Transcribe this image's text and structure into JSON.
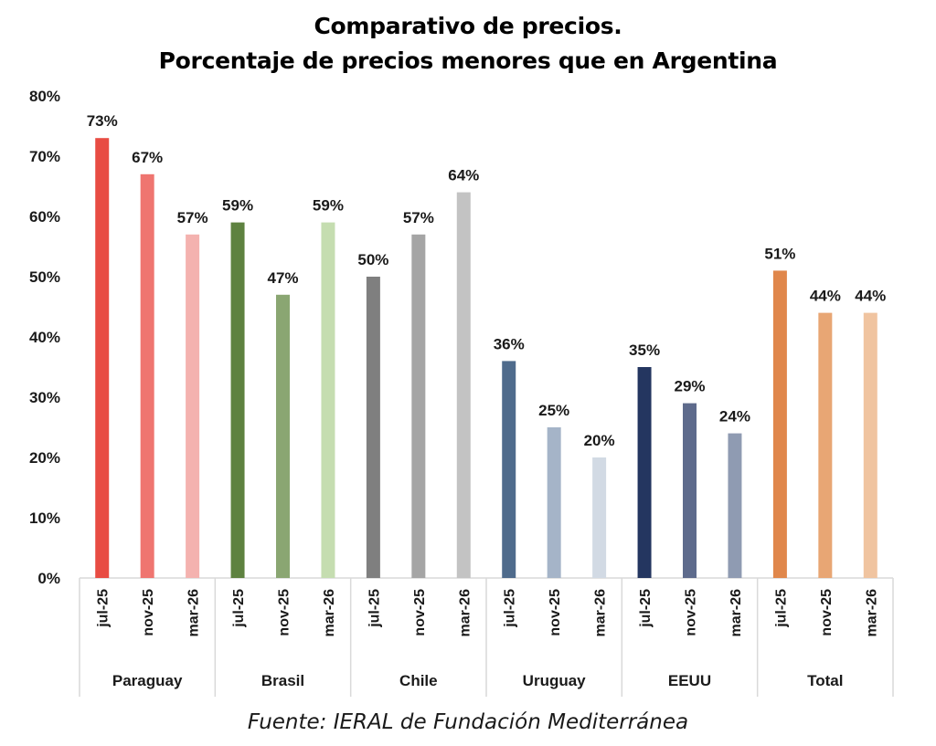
{
  "chart_data": {
    "type": "bar",
    "title": "Comparativo de precios.",
    "subtitle": "Porcentaje de precios menores que en Argentina",
    "xlabel": "",
    "ylabel": "",
    "ylim": [
      0,
      80
    ],
    "yticks": [
      "0%",
      "10%",
      "20%",
      "30%",
      "40%",
      "50%",
      "60%",
      "70%",
      "80%"
    ],
    "ytick_values": [
      0,
      10,
      20,
      30,
      40,
      50,
      60,
      70,
      80
    ],
    "grid": false,
    "legend": "none",
    "periods": [
      "jul-25",
      "nov-25",
      "mar-26"
    ],
    "groups": [
      {
        "name": "Paraguay",
        "values": [
          73,
          67,
          57
        ],
        "labels": [
          "73%",
          "67%",
          "57%"
        ],
        "colors": [
          "#e84c43",
          "#ef7570",
          "#f4b2af"
        ]
      },
      {
        "name": "Brasil",
        "values": [
          59,
          47,
          59
        ],
        "labels": [
          "59%",
          "47%",
          "59%"
        ],
        "colors": [
          "#5e8240",
          "#8aa672",
          "#c5ddb0"
        ]
      },
      {
        "name": "Chile",
        "values": [
          50,
          57,
          64
        ],
        "labels": [
          "50%",
          "57%",
          "64%"
        ],
        "colors": [
          "#7f7f7f",
          "#a5a5a5",
          "#c3c3c3"
        ]
      },
      {
        "name": "Uruguay",
        "values": [
          36,
          25,
          20
        ],
        "labels": [
          "36%",
          "25%",
          "20%"
        ],
        "colors": [
          "#4f6b8c",
          "#a5b4c8",
          "#d2dae4"
        ]
      },
      {
        "name": "EEUU",
        "values": [
          35,
          29,
          24
        ],
        "labels": [
          "35%",
          "29%",
          "24%"
        ],
        "colors": [
          "#243660",
          "#5e6b8c",
          "#8f9bb2"
        ]
      },
      {
        "name": "Total",
        "values": [
          51,
          44,
          44
        ],
        "labels": [
          "51%",
          "44%",
          "44%"
        ],
        "colors": [
          "#e0874b",
          "#e8a674",
          "#f0c4a0"
        ]
      }
    ]
  },
  "source": "Fuente: IERAL de Fundación Mediterránea"
}
